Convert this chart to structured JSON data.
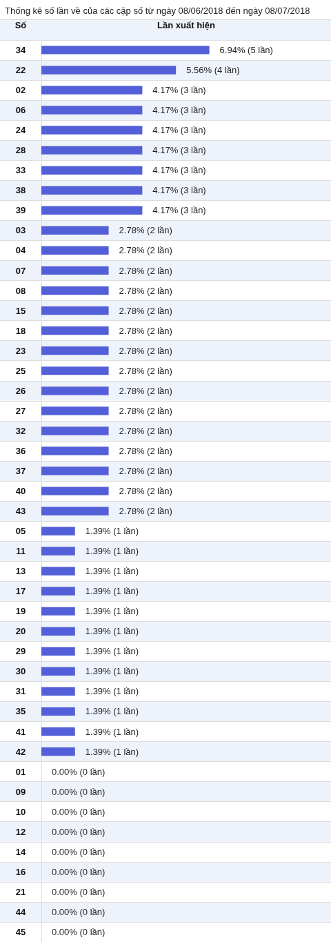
{
  "chart_data": {
    "type": "bar",
    "orientation": "horizontal",
    "title": "Thống kê số lần về của các cặp số từ ngày 08/06/2018 đến ngày 08/07/2018",
    "ylabel": "Số",
    "xlabel": "Lần xuất hiện",
    "categories": [
      "34",
      "22",
      "02",
      "06",
      "24",
      "28",
      "33",
      "38",
      "39",
      "03",
      "04",
      "07",
      "08",
      "15",
      "18",
      "23",
      "25",
      "26",
      "27",
      "32",
      "36",
      "37",
      "40",
      "43",
      "05",
      "11",
      "13",
      "17",
      "19",
      "20",
      "29",
      "30",
      "31",
      "35",
      "41",
      "42",
      "01",
      "09",
      "10",
      "12",
      "14",
      "16",
      "21",
      "44",
      "45"
    ],
    "values": [
      6.94,
      5.56,
      4.17,
      4.17,
      4.17,
      4.17,
      4.17,
      4.17,
      4.17,
      2.78,
      2.78,
      2.78,
      2.78,
      2.78,
      2.78,
      2.78,
      2.78,
      2.78,
      2.78,
      2.78,
      2.78,
      2.78,
      2.78,
      2.78,
      1.39,
      1.39,
      1.39,
      1.39,
      1.39,
      1.39,
      1.39,
      1.39,
      1.39,
      1.39,
      1.39,
      1.39,
      0,
      0,
      0,
      0,
      0,
      0,
      0,
      0,
      0
    ],
    "value_labels": [
      "6.94% (5 lần)",
      "5.56% (4 lần)",
      "4.17% (3 lần)",
      "4.17% (3 lần)",
      "4.17% (3 lần)",
      "4.17% (3 lần)",
      "4.17% (3 lần)",
      "4.17% (3 lần)",
      "4.17% (3 lần)",
      "2.78% (2 lần)",
      "2.78% (2 lần)",
      "2.78% (2 lần)",
      "2.78% (2 lần)",
      "2.78% (2 lần)",
      "2.78% (2 lần)",
      "2.78% (2 lần)",
      "2.78% (2 lần)",
      "2.78% (2 lần)",
      "2.78% (2 lần)",
      "2.78% (2 lần)",
      "2.78% (2 lần)",
      "2.78% (2 lần)",
      "2.78% (2 lần)",
      "2.78% (2 lần)",
      "1.39% (1 lần)",
      "1.39% (1 lần)",
      "1.39% (1 lần)",
      "1.39% (1 lần)",
      "1.39% (1 lần)",
      "1.39% (1 lần)",
      "1.39% (1 lần)",
      "1.39% (1 lần)",
      "1.39% (1 lần)",
      "1.39% (1 lần)",
      "1.39% (1 lần)",
      "1.39% (1 lần)",
      "0.00% (0 lần)",
      "0.00% (0 lần)",
      "0.00% (0 lần)",
      "0.00% (0 lần)",
      "0.00% (0 lần)",
      "0.00% (0 lần)",
      "0.00% (0 lần)",
      "0.00% (0 lần)",
      "0.00% (0 lần)"
    ],
    "color": "#535fd8",
    "grid": "y",
    "tick_labels": "y"
  }
}
